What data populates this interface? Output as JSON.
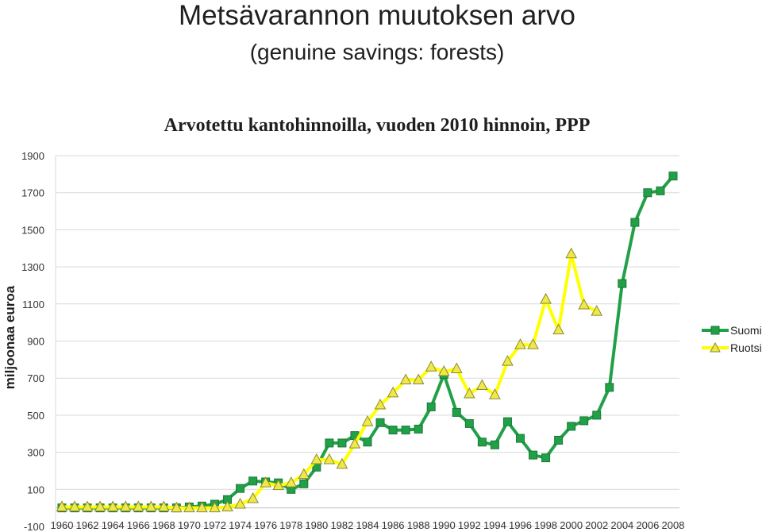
{
  "title": "Metsävarannon muutoksen arvo",
  "subtitle": "(genuine savings: forests)",
  "chart_data": {
    "type": "line",
    "title": "Arvotettu kantohinnoilla, vuoden 2010 hinnoin, PPP",
    "ylabel": "miljoonaa euroa",
    "xlabel": "",
    "ylim": [
      -100,
      1900
    ],
    "yticks": [
      -100,
      100,
      300,
      500,
      700,
      900,
      1100,
      1300,
      1500,
      1700,
      1900
    ],
    "grid": true,
    "legend_position": "right",
    "x": [
      1960,
      1961,
      1962,
      1963,
      1964,
      1965,
      1966,
      1967,
      1968,
      1969,
      1970,
      1971,
      1972,
      1973,
      1974,
      1975,
      1976,
      1977,
      1978,
      1979,
      1980,
      1981,
      1982,
      1983,
      1984,
      1985,
      1986,
      1987,
      1988,
      1989,
      1990,
      1991,
      1992,
      1993,
      1994,
      1995,
      1996,
      1997,
      1998,
      1999,
      2000,
      2001,
      2002,
      2003,
      2004,
      2005,
      2006,
      2007,
      2008
    ],
    "xtick_labels": [
      "1960",
      "1962",
      "1964",
      "1966",
      "1968",
      "1970",
      "1972",
      "1974",
      "1976",
      "1978",
      "1980",
      "1982",
      "1984",
      "1986",
      "1988",
      "1990",
      "1992",
      "1994",
      "1996",
      "1998",
      "2000",
      "2002",
      "2004",
      "2006",
      "2008"
    ],
    "series": [
      {
        "name": "Suomi",
        "color": "#21a047",
        "marker": "square",
        "values": [
          0,
          0,
          0,
          0,
          0,
          0,
          0,
          0,
          0,
          0,
          5,
          10,
          20,
          45,
          105,
          145,
          140,
          135,
          100,
          130,
          220,
          350,
          350,
          390,
          355,
          460,
          420,
          420,
          425,
          545,
          720,
          515,
          455,
          355,
          340,
          465,
          375,
          285,
          270,
          365,
          440,
          470,
          500,
          650,
          1210,
          1540,
          1700,
          1710,
          1790
        ]
      },
      {
        "name": "Ruotsi",
        "color": "#ffff00",
        "marker": "triangle",
        "values": [
          5,
          5,
          5,
          5,
          5,
          5,
          5,
          5,
          5,
          0,
          0,
          0,
          0,
          5,
          20,
          50,
          135,
          120,
          135,
          180,
          260,
          260,
          235,
          345,
          465,
          555,
          620,
          690,
          690,
          760,
          735,
          750,
          615,
          660,
          610,
          790,
          880,
          880,
          1125,
          960,
          1370,
          1095,
          1060,
          null,
          null,
          null,
          null,
          null,
          null
        ]
      }
    ]
  }
}
